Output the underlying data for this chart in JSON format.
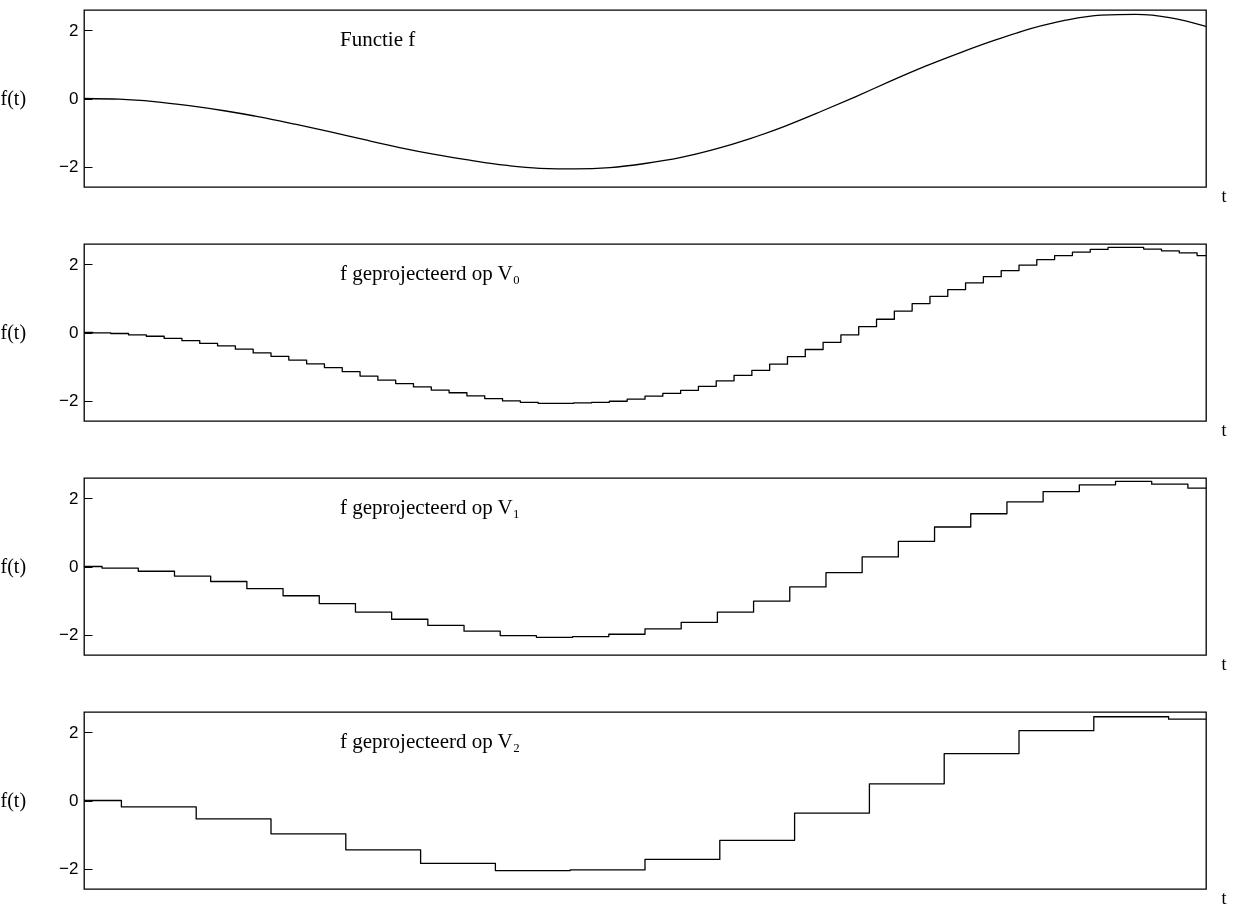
{
  "chart_data": [
    {
      "type": "line",
      "title": "Functie f",
      "ylabel": "f(t)",
      "xlabel": "t",
      "tick_labels": "y",
      "ylim": [
        -2.6,
        2.6
      ],
      "yticks": [
        -2,
        0,
        2
      ],
      "categories": [
        null,
        null,
        null,
        null,
        null,
        null,
        null,
        null,
        null,
        null,
        null,
        null,
        null,
        null,
        null,
        null,
        null,
        null,
        null,
        null,
        null,
        null,
        null,
        null,
        null,
        null,
        null,
        null,
        null,
        null,
        null,
        null,
        null
      ],
      "series": [
        {
          "color": "#000000",
          "values": [
            0,
            -0.02,
            -0.09,
            -0.21,
            -0.36,
            -0.54,
            -0.75,
            -0.97,
            -1.21,
            -1.44,
            -1.64,
            -1.81,
            -1.96,
            -2.05,
            -2.07,
            -2.03,
            -1.91,
            -1.74,
            -1.49,
            -1.18,
            -0.81,
            -0.39,
            0.05,
            0.51,
            0.95,
            1.35,
            1.72,
            2.05,
            2.3,
            2.45,
            2.47,
            2.37,
            2.12
          ]
        }
      ]
    },
    {
      "type": "step",
      "title": "f geprojecteerd op V₀",
      "ylabel": "f(t)",
      "xlabel": "t",
      "tick_labels": "y",
      "ylim": [
        -2.6,
        2.6
      ],
      "yticks": [
        -2,
        0,
        2
      ],
      "categories": [
        null,
        null,
        null,
        null,
        null,
        null,
        null,
        null,
        null,
        null,
        null,
        null,
        null,
        null,
        null,
        null,
        null,
        null,
        null,
        null,
        null,
        null,
        null,
        null,
        null,
        null,
        null,
        null,
        null,
        null,
        null,
        null,
        null,
        null,
        null,
        null,
        null,
        null,
        null,
        null,
        null,
        null,
        null,
        null,
        null,
        null,
        null,
        null,
        null,
        null,
        null,
        null,
        null,
        null,
        null,
        null,
        null,
        null,
        null,
        null,
        null,
        null,
        null,
        null
      ],
      "series": [
        {
          "color": "#000000",
          "values": [
            0,
            -0.01,
            -0.03,
            -0.07,
            -0.11,
            -0.17,
            -0.24,
            -0.32,
            -0.39,
            -0.49,
            -0.6,
            -0.7,
            -0.81,
            -0.92,
            -1.03,
            -1.15,
            -1.28,
            -1.4,
            -1.5,
            -1.6,
            -1.69,
            -1.77,
            -1.86,
            -1.94,
            -2.01,
            -2.05,
            -2.08,
            -2.08,
            -2.07,
            -2.05,
            -2.02,
            -1.96,
            -1.87,
            -1.79,
            -1.7,
            -1.58,
            -1.42,
            -1.26,
            -1.11,
            -0.93,
            -0.71,
            -0.5,
            -0.29,
            -0.07,
            0.17,
            0.39,
            0.63,
            0.85,
            1.06,
            1.26,
            1.46,
            1.64,
            1.82,
            1.98,
            2.14,
            2.26,
            2.36,
            2.44,
            2.5,
            2.5,
            2.45,
            2.4,
            2.34,
            2.26
          ]
        }
      ]
    },
    {
      "type": "step",
      "title": "f geprojecteerd op V₁",
      "ylabel": "f(t)",
      "xlabel": "t",
      "tick_labels": "y",
      "ylim": [
        -2.6,
        2.6
      ],
      "yticks": [
        -2,
        0,
        2
      ],
      "categories": [
        null,
        null,
        null,
        null,
        null,
        null,
        null,
        null,
        null,
        null,
        null,
        null,
        null,
        null,
        null,
        null,
        null,
        null,
        null,
        null,
        null,
        null,
        null,
        null,
        null,
        null,
        null,
        null,
        null,
        null,
        null,
        null
      ],
      "series": [
        {
          "color": "#000000",
          "values": [
            0,
            -0.05,
            -0.14,
            -0.28,
            -0.44,
            -0.65,
            -0.86,
            -1.09,
            -1.34,
            -1.55,
            -1.73,
            -1.9,
            -2.03,
            -2.08,
            -2.06,
            -1.99,
            -1.83,
            -1.64,
            -1.34,
            -1.02,
            -0.6,
            -0.18,
            0.28,
            0.74,
            1.16,
            1.55,
            1.9,
            2.2,
            2.4,
            2.5,
            2.42,
            2.3
          ]
        }
      ]
    },
    {
      "type": "step",
      "title": "f geprojecteerd op V₂",
      "ylabel": "f(t)",
      "xlabel": "t",
      "tick_labels": "y",
      "ylim": [
        -2.6,
        2.6
      ],
      "yticks": [
        -2,
        0,
        2
      ],
      "categories": [
        null,
        null,
        null,
        null,
        null,
        null,
        null,
        null,
        null,
        null,
        null,
        null,
        null,
        null,
        null,
        null
      ],
      "series": [
        {
          "color": "#000000",
          "values": [
            0,
            -0.19,
            -0.54,
            -0.98,
            -1.45,
            -1.85,
            -2.06,
            -2.04,
            -1.73,
            -1.17,
            -0.37,
            0.49,
            1.38,
            2.05,
            2.46,
            2.39
          ]
        }
      ]
    }
  ]
}
